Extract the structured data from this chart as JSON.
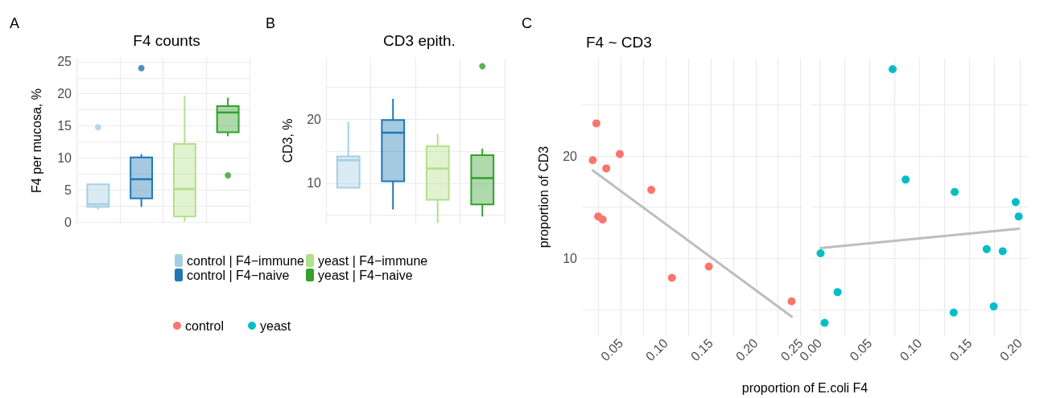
{
  "chart_data": [
    {
      "type": "box",
      "title": "F4 counts",
      "ylabel": "F4 per mucosa, %",
      "annotations": [
        "A"
      ],
      "categories": [
        null,
        null,
        null,
        null
      ],
      "series": [
        {
          "name": "control | F4−immune",
          "color": "#a6cee3",
          "boxes": [
            {
              "low": 2.0,
              "q1": 2.4,
              "median": 2.8,
              "q3": 5.9,
              "high": 5.9,
              "outliers": [
                14.8
              ]
            },
            null,
            null,
            null
          ]
        },
        {
          "name": "control | F4−naive",
          "color": "#1f78b4",
          "boxes": [
            null,
            {
              "low": 2.4,
              "q1": 3.7,
              "median": 6.7,
              "q3": 10.1,
              "high": 10.6,
              "outliers": [
                24.0
              ]
            },
            null,
            null
          ]
        },
        {
          "name": "yeast | F4−immune",
          "color": "#b2df8a",
          "boxes": [
            null,
            null,
            {
              "low": 0.1,
              "q1": 0.9,
              "median": 5.2,
              "q3": 12.2,
              "high": 19.7
            },
            null
          ]
        },
        {
          "name": "yeast | F4−naive",
          "color": "#33a02c",
          "boxes": [
            null,
            null,
            null,
            {
              "low": 13.4,
              "q1": 14.0,
              "median": 17.1,
              "q3": 18.1,
              "high": 19.4,
              "outliers": [
                7.3
              ]
            }
          ]
        }
      ],
      "ylim": [
        -0.2,
        25.6
      ],
      "yticks": [
        0,
        {
          "value": 2.5,
          "label": null
        },
        5,
        {
          "value": 7.5,
          "label": null
        },
        10,
        {
          "value": 12.5,
          "label": null
        },
        15,
        {
          "value": 17.5,
          "label": null
        },
        20,
        {
          "value": 22.5,
          "label": null
        },
        25
      ],
      "grid": true,
      "legend": "bottom",
      "tick_labels": "y"
    },
    {
      "type": "box",
      "title": "CD3 epith.",
      "ylabel": "CD3, %",
      "annotations": [
        "B"
      ],
      "categories": [
        null,
        null,
        null,
        null
      ],
      "series": [
        {
          "color": "#a6cee3",
          "boxes": [
            {
              "low": 9.3,
              "q1": 9.3,
              "median": 13.6,
              "q3": 14.2,
              "high": 19.6
            },
            null,
            null,
            null
          ]
        },
        {
          "color": "#1f78b4",
          "boxes": [
            null,
            {
              "low": 5.9,
              "q1": 10.3,
              "median": 17.9,
              "q3": 19.9,
              "high": 23.2
            },
            null,
            null
          ]
        },
        {
          "color": "#b2df8a",
          "boxes": [
            null,
            null,
            {
              "low": 3.8,
              "q1": 7.4,
              "median": 12.3,
              "q3": 15.8,
              "high": 17.7
            },
            null
          ]
        },
        {
          "color": "#33a02c",
          "boxes": [
            null,
            null,
            null,
            {
              "low": 4.8,
              "q1": 6.7,
              "median": 10.8,
              "q3": 14.4,
              "high": 15.4,
              "outliers": [
                28.3
              ]
            }
          ]
        }
      ],
      "ylim": [
        3.7,
        29.6
      ],
      "yticks": [
        {
          "value": 5,
          "label": null
        },
        10,
        {
          "value": 15,
          "label": null
        },
        20,
        {
          "value": 25,
          "label": null
        }
      ],
      "grid": true,
      "tick_labels": "y"
    },
    {
      "type": "scatter",
      "title": "F4 ~ CD3",
      "ylabel": "proportion of CD3",
      "xlabel": "proportion of E.coli F4",
      "annotations": [
        "C"
      ],
      "series": [
        {
          "name": "control",
          "color": "#f8766d",
          "marker": "circle",
          "x": [
            0.023,
            0.019,
            0.034,
            0.049,
            0.025,
            0.03,
            0.084,
            0.107,
            0.148,
            0.24
          ],
          "values": [
            23.2,
            19.6,
            18.8,
            20.2,
            14.1,
            13.8,
            16.7,
            8.1,
            9.2,
            5.8
          ]
        },
        {
          "type": "line",
          "color": "#bebebe",
          "marker": "none",
          "x": [
            0.019,
            0.24
          ],
          "values": [
            18.6,
            4.3
          ]
        }
      ],
      "xlim": [
        0.007,
        0.253
      ],
      "xticks": [
        {
          "value": 0.025,
          "label": null
        },
        0.05,
        {
          "value": 0.075,
          "label": null
        },
        {
          "value": 0.1,
          "label": "0.10"
        },
        {
          "value": 0.125,
          "label": null
        },
        0.15,
        {
          "value": 0.175,
          "label": null
        },
        {
          "value": 0.2,
          "label": "0.20"
        },
        {
          "value": 0.225,
          "label": null
        },
        0.25
      ],
      "ylim": [
        2.4,
        29.6
      ],
      "yticks": [
        {
          "value": 5,
          "label": null
        },
        10,
        {
          "value": 15,
          "label": null
        },
        20,
        {
          "value": 25,
          "label": null
        }
      ],
      "grid": true,
      "legend": "bottom left"
    },
    {
      "type": "scatter",
      "series": [
        {
          "name": "yeast",
          "color": "#00bfc4",
          "marker": "circle",
          "x": [
            0.073,
            0.086,
            0.135,
            0.196,
            0.199,
            0.167,
            0.183,
            0.001,
            0.018,
            0.005,
            0.134,
            0.174
          ],
          "values": [
            28.5,
            17.7,
            16.5,
            15.5,
            14.1,
            10.9,
            10.7,
            10.5,
            6.7,
            3.7,
            4.7,
            5.3
          ]
        },
        {
          "type": "line",
          "color": "#bebebe",
          "marker": "none",
          "x": [
            0.001,
            0.199
          ],
          "values": [
            11.0,
            12.9
          ]
        }
      ],
      "xlim": [
        -0.009,
        0.209
      ],
      "xticks": [
        {
          "value": 0,
          "label": "0.00"
        },
        {
          "value": 0.025,
          "label": null
        },
        0.05,
        {
          "value": 0.075,
          "label": null
        },
        {
          "value": 0.1,
          "label": "0.10"
        },
        {
          "value": 0.125,
          "label": null
        },
        0.15,
        {
          "value": 0.175,
          "label": null
        },
        {
          "value": 0.2,
          "label": "0.20"
        }
      ],
      "ylim": [
        2.4,
        29.6
      ],
      "yticks": [
        {
          "value": 5,
          "label": null
        },
        10,
        {
          "value": 15,
          "label": null
        },
        20,
        {
          "value": 25,
          "label": null
        }
      ],
      "grid": true,
      "legend": "bottom left",
      "tick_labels": "x"
    }
  ]
}
